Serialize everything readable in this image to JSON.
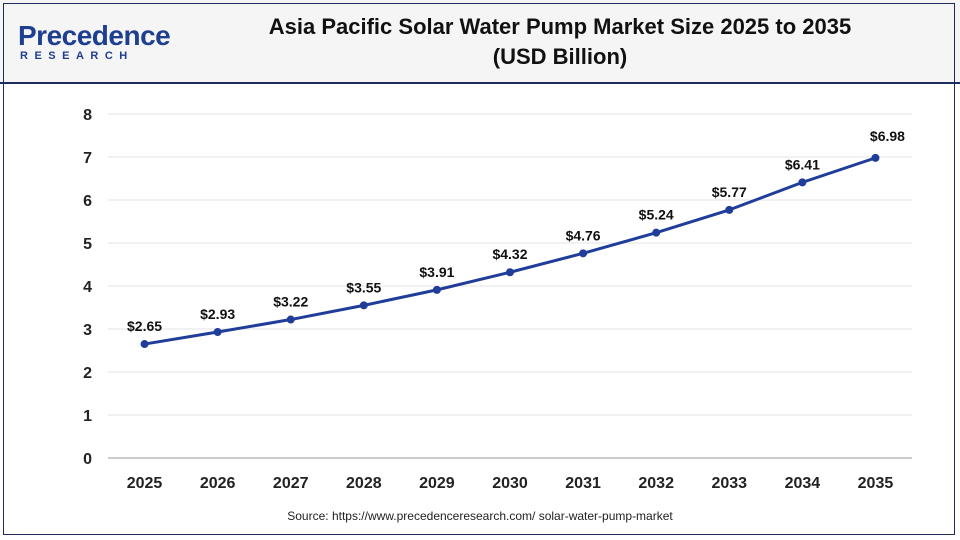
{
  "header": {
    "logo_main": "Precedence",
    "logo_sub": "RESEARCH",
    "title_line1": "Asia Pacific Solar Water Pump Market Size 2025 to 2035",
    "title_line2": "(USD Billion)"
  },
  "source": "Source: https://www.precedenceresearch.com/ solar-water-pump-market",
  "colors": {
    "line": "#1f3d99",
    "brand": "#1e3f8f",
    "grid": "#e3e3e3"
  },
  "chart_data": {
    "type": "line",
    "title": "Asia Pacific Solar Water Pump Market Size 2025 to 2035 (USD Billion)",
    "xlabel": "",
    "ylabel": "",
    "ylim": [
      0,
      8
    ],
    "yticks": [
      "0",
      "1",
      "2",
      "3",
      "4",
      "5",
      "6",
      "7",
      "8"
    ],
    "grid": true,
    "categories": [
      "2025",
      "2026",
      "2027",
      "2028",
      "2029",
      "2030",
      "2031",
      "2032",
      "2033",
      "2034",
      "2035"
    ],
    "series": [
      {
        "values": [
          2.65,
          2.93,
          3.22,
          3.55,
          3.91,
          4.32,
          4.76,
          5.24,
          5.77,
          6.41,
          6.98
        ],
        "labels": [
          "$2.65",
          "$2.93",
          "$3.22",
          "$3.55",
          "$3.91",
          "$4.32",
          "$4.76",
          "$5.24",
          "$5.77",
          "$6.41",
          "$6.98"
        ]
      }
    ]
  }
}
